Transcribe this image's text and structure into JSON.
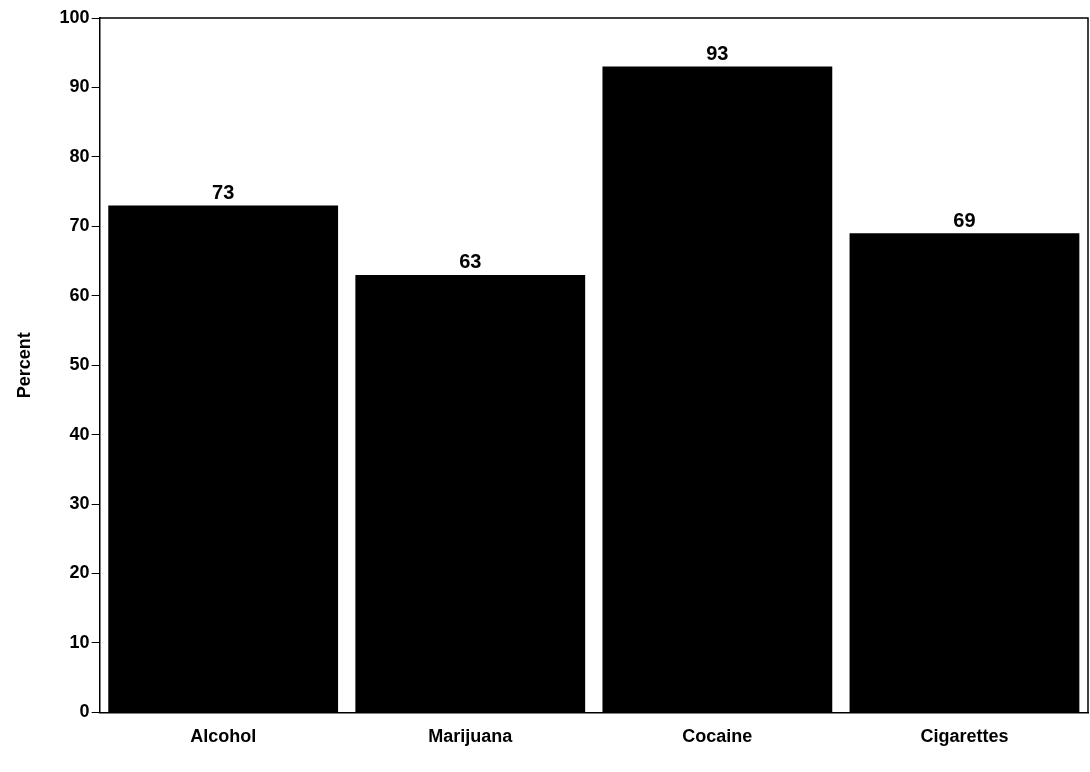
{
  "chart_data": {
    "type": "bar",
    "ylabel": "Percent",
    "categories": [
      "Alcohol",
      "Marijuana",
      "Cocaine",
      "Cigarettes"
    ],
    "values": [
      73,
      63,
      93,
      69
    ],
    "color": "#000000",
    "ylim": [
      0,
      100
    ],
    "yticks": [
      0,
      10,
      20,
      30,
      40,
      50,
      60,
      70,
      80,
      90,
      100
    ],
    "grid": false,
    "data_labels": true
  }
}
